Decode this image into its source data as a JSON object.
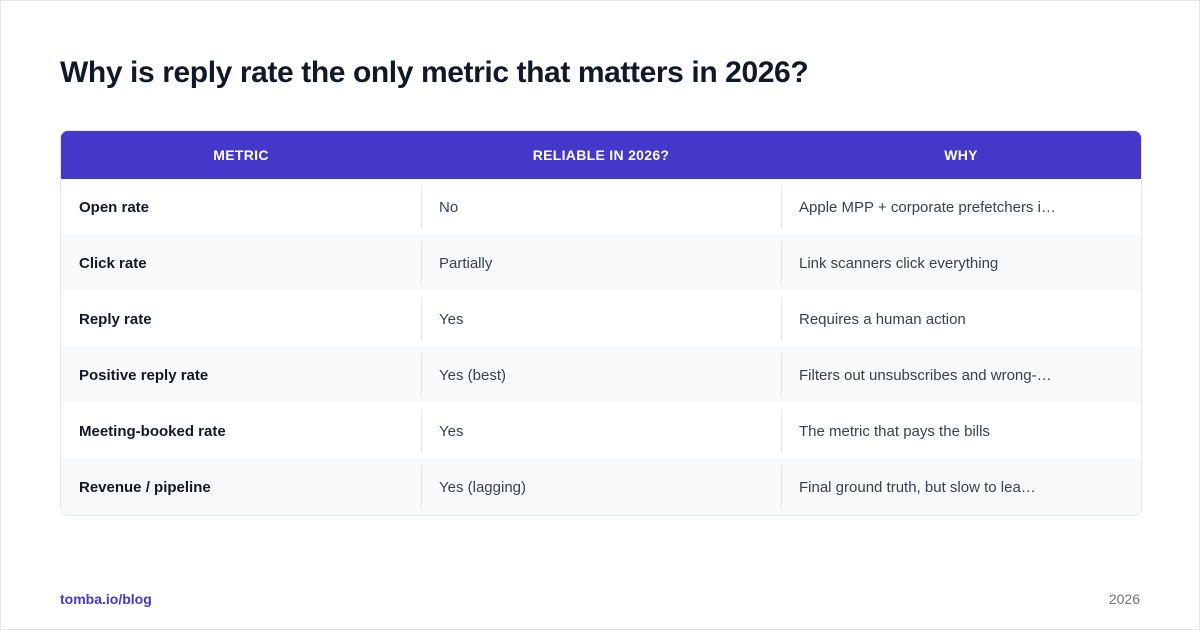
{
  "header": {
    "title": "Why is reply rate the only metric that matters in 2026?"
  },
  "table": {
    "columns": [
      "METRIC",
      "RELIABLE IN 2026?",
      "WHY"
    ],
    "rows": [
      [
        "Open rate",
        "No",
        "Apple MPP + corporate prefetchers i…"
      ],
      [
        "Click rate",
        "Partially",
        "Link scanners click everything"
      ],
      [
        "Reply rate",
        "Yes",
        "Requires a human action"
      ],
      [
        "Positive reply rate",
        "Yes (best)",
        "Filters out unsubscribes and wrong-…"
      ],
      [
        "Meeting-booked rate",
        "Yes",
        "The metric that pays the bills"
      ],
      [
        "Revenue / pipeline",
        "Yes (lagging)",
        "Final ground truth, but slow to lea…"
      ]
    ]
  },
  "footer": {
    "source": "tomba.io/blog",
    "year": "2026"
  }
}
